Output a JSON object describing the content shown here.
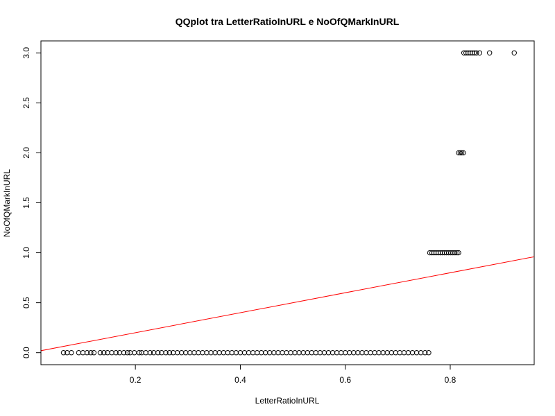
{
  "chart_data": {
    "type": "scatter",
    "title": "QQplot tra LetterRatioInURL e NoOfQMarkInURL",
    "xlabel": "LetterRatioInURL",
    "ylabel": "NoOfQMarkInURL",
    "xlim": [
      0.02,
      0.96
    ],
    "ylim": [
      -0.12,
      3.12
    ],
    "x_ticks": [
      {
        "value": 0.2,
        "label": "0.2"
      },
      {
        "value": 0.4,
        "label": "0.4"
      },
      {
        "value": 0.6,
        "label": "0.6"
      },
      {
        "value": 0.8,
        "label": "0.8"
      }
    ],
    "y_ticks": [
      {
        "value": 0.0,
        "label": "0.0"
      },
      {
        "value": 0.5,
        "label": "0.5"
      },
      {
        "value": 1.0,
        "label": "1.0"
      },
      {
        "value": 1.5,
        "label": "1.5"
      },
      {
        "value": 2.0,
        "label": "2.0"
      },
      {
        "value": 2.5,
        "label": "2.5"
      },
      {
        "value": 3.0,
        "label": "3.0"
      }
    ],
    "grid": false,
    "series": [
      {
        "marker": "open-circle",
        "color": "#000000",
        "points": [
          {
            "x": 0.063,
            "y": 0
          },
          {
            "x": 0.07,
            "y": 0
          },
          {
            "x": 0.078,
            "y": 0
          },
          {
            "x": 0.092,
            "y": 0
          },
          {
            "x": 0.1,
            "y": 0
          },
          {
            "x": 0.108,
            "y": 0
          },
          {
            "x": 0.115,
            "y": 0
          },
          {
            "x": 0.121,
            "y": 0
          },
          {
            "x": 0.133,
            "y": 0
          },
          {
            "x": 0.14,
            "y": 0
          },
          {
            "x": 0.147,
            "y": 0
          },
          {
            "x": 0.155,
            "y": 0
          },
          {
            "x": 0.163,
            "y": 0
          },
          {
            "x": 0.17,
            "y": 0
          },
          {
            "x": 0.178,
            "y": 0
          },
          {
            "x": 0.185,
            "y": 0
          },
          {
            "x": 0.19,
            "y": 0
          },
          {
            "x": 0.198,
            "y": 0
          },
          {
            "x": 0.207,
            "y": 0
          },
          {
            "x": 0.212,
            "y": 0
          },
          {
            "x": 0.22,
            "y": 0
          },
          {
            "x": 0.228,
            "y": 0
          },
          {
            "x": 0.235,
            "y": 0
          },
          {
            "x": 0.243,
            "y": 0
          },
          {
            "x": 0.25,
            "y": 0
          },
          {
            "x": 0.258,
            "y": 0
          },
          {
            "x": 0.265,
            "y": 0
          },
          {
            "x": 0.272,
            "y": 0
          },
          {
            "x": 0.28,
            "y": 0
          },
          {
            "x": 0.288,
            "y": 0
          },
          {
            "x": 0.296,
            "y": 0
          },
          {
            "x": 0.304,
            "y": 0
          },
          {
            "x": 0.312,
            "y": 0
          },
          {
            "x": 0.32,
            "y": 0
          },
          {
            "x": 0.328,
            "y": 0
          },
          {
            "x": 0.336,
            "y": 0
          },
          {
            "x": 0.344,
            "y": 0
          },
          {
            "x": 0.352,
            "y": 0
          },
          {
            "x": 0.36,
            "y": 0
          },
          {
            "x": 0.368,
            "y": 0
          },
          {
            "x": 0.376,
            "y": 0
          },
          {
            "x": 0.384,
            "y": 0
          },
          {
            "x": 0.392,
            "y": 0
          },
          {
            "x": 0.4,
            "y": 0
          },
          {
            "x": 0.408,
            "y": 0
          },
          {
            "x": 0.416,
            "y": 0
          },
          {
            "x": 0.424,
            "y": 0
          },
          {
            "x": 0.432,
            "y": 0
          },
          {
            "x": 0.44,
            "y": 0
          },
          {
            "x": 0.448,
            "y": 0
          },
          {
            "x": 0.456,
            "y": 0
          },
          {
            "x": 0.464,
            "y": 0
          },
          {
            "x": 0.472,
            "y": 0
          },
          {
            "x": 0.48,
            "y": 0
          },
          {
            "x": 0.488,
            "y": 0
          },
          {
            "x": 0.496,
            "y": 0
          },
          {
            "x": 0.504,
            "y": 0
          },
          {
            "x": 0.512,
            "y": 0
          },
          {
            "x": 0.52,
            "y": 0
          },
          {
            "x": 0.528,
            "y": 0
          },
          {
            "x": 0.536,
            "y": 0
          },
          {
            "x": 0.544,
            "y": 0
          },
          {
            "x": 0.552,
            "y": 0
          },
          {
            "x": 0.56,
            "y": 0
          },
          {
            "x": 0.568,
            "y": 0
          },
          {
            "x": 0.576,
            "y": 0
          },
          {
            "x": 0.584,
            "y": 0
          },
          {
            "x": 0.592,
            "y": 0
          },
          {
            "x": 0.6,
            "y": 0
          },
          {
            "x": 0.608,
            "y": 0
          },
          {
            "x": 0.616,
            "y": 0
          },
          {
            "x": 0.624,
            "y": 0
          },
          {
            "x": 0.632,
            "y": 0
          },
          {
            "x": 0.64,
            "y": 0
          },
          {
            "x": 0.648,
            "y": 0
          },
          {
            "x": 0.656,
            "y": 0
          },
          {
            "x": 0.664,
            "y": 0
          },
          {
            "x": 0.672,
            "y": 0
          },
          {
            "x": 0.68,
            "y": 0
          },
          {
            "x": 0.688,
            "y": 0
          },
          {
            "x": 0.696,
            "y": 0
          },
          {
            "x": 0.704,
            "y": 0
          },
          {
            "x": 0.712,
            "y": 0
          },
          {
            "x": 0.72,
            "y": 0
          },
          {
            "x": 0.728,
            "y": 0
          },
          {
            "x": 0.736,
            "y": 0
          },
          {
            "x": 0.744,
            "y": 0
          },
          {
            "x": 0.752,
            "y": 0
          },
          {
            "x": 0.759,
            "y": 0
          },
          {
            "x": 0.761,
            "y": 1
          },
          {
            "x": 0.765,
            "y": 1
          },
          {
            "x": 0.769,
            "y": 1
          },
          {
            "x": 0.773,
            "y": 1
          },
          {
            "x": 0.777,
            "y": 1
          },
          {
            "x": 0.781,
            "y": 1
          },
          {
            "x": 0.785,
            "y": 1
          },
          {
            "x": 0.789,
            "y": 1
          },
          {
            "x": 0.793,
            "y": 1
          },
          {
            "x": 0.797,
            "y": 1
          },
          {
            "x": 0.801,
            "y": 1
          },
          {
            "x": 0.805,
            "y": 1
          },
          {
            "x": 0.809,
            "y": 1
          },
          {
            "x": 0.813,
            "y": 1
          },
          {
            "x": 0.816,
            "y": 1
          },
          {
            "x": 0.816,
            "y": 2
          },
          {
            "x": 0.819,
            "y": 2
          },
          {
            "x": 0.822,
            "y": 2
          },
          {
            "x": 0.825,
            "y": 2
          },
          {
            "x": 0.826,
            "y": 3
          },
          {
            "x": 0.83,
            "y": 3
          },
          {
            "x": 0.834,
            "y": 3
          },
          {
            "x": 0.838,
            "y": 3
          },
          {
            "x": 0.842,
            "y": 3
          },
          {
            "x": 0.846,
            "y": 3
          },
          {
            "x": 0.85,
            "y": 3
          },
          {
            "x": 0.856,
            "y": 3
          },
          {
            "x": 0.875,
            "y": 3
          },
          {
            "x": 0.922,
            "y": 3
          }
        ]
      }
    ],
    "reference_line": {
      "color": "#ff0000",
      "from": {
        "x": 0.0,
        "y": 0.0
      },
      "to": {
        "x": 1.0,
        "y": 1.0
      }
    }
  }
}
